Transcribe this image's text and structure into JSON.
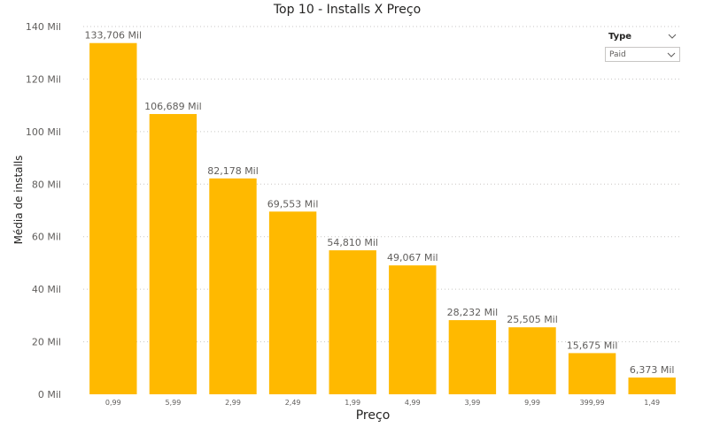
{
  "chart_data": {
    "type": "bar",
    "title": "Top 10 - Installs X Preço",
    "xlabel": "Preço",
    "ylabel": "Média de installs",
    "categories": [
      "0,99",
      "5,99",
      "2,99",
      "2,49",
      "1,99",
      "4,99",
      "3,99",
      "9,99",
      "399,99",
      "1,49"
    ],
    "values": [
      133.706,
      106.689,
      82.178,
      69.553,
      54.81,
      49.067,
      28.232,
      25.505,
      15.675,
      6.373
    ],
    "data_labels": [
      "133,706 Mil",
      "106,689 Mil",
      "82,178 Mil",
      "69,553 Mil",
      "54,810 Mil",
      "49,067 Mil",
      "28,232 Mil",
      "25,505 Mil",
      "15,675 Mil",
      "6,373 Mil"
    ],
    "ylim": [
      0,
      140
    ],
    "yticks": [
      0,
      20,
      40,
      60,
      80,
      100,
      120,
      140
    ],
    "ytick_labels": [
      "0 Mil",
      "20 Mil",
      "40 Mil",
      "60 Mil",
      "80 Mil",
      "100 Mil",
      "120 Mil",
      "140 Mil"
    ],
    "grid": true,
    "bar_color": "#ffb900",
    "legend": "none"
  },
  "slicer": {
    "title": "Type",
    "selected": "Paid"
  }
}
